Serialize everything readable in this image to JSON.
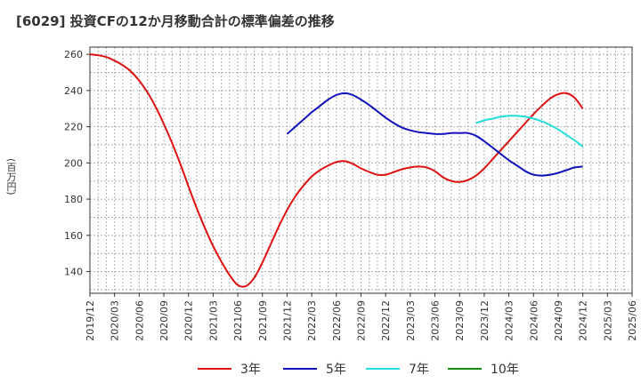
{
  "chart_data": {
    "type": "line",
    "title": "[6029]  投資CFの12か月移動合計の標準偏差の推移",
    "ylabel": "(百万円)",
    "xlabel": "",
    "ylim": [
      128,
      264
    ],
    "yticks": [
      140,
      160,
      180,
      200,
      220,
      240,
      260
    ],
    "x_tick_labels": [
      "2019/12",
      "2020/03",
      "2020/06",
      "2020/09",
      "2020/12",
      "2021/03",
      "2021/06",
      "2021/09",
      "2021/12",
      "2022/03",
      "2022/06",
      "2022/09",
      "2022/12",
      "2023/03",
      "2023/06",
      "2023/09",
      "2023/12",
      "2024/03",
      "2024/06",
      "2024/09",
      "2024/12",
      "2025/03",
      "2025/06"
    ],
    "x_start": "2019-12",
    "grid": true,
    "legend_position": "bottom",
    "series": [
      {
        "name": "3年",
        "color": "#dd1111",
        "points": [
          [
            "2019-12",
            260
          ],
          [
            "2020-01",
            259.5
          ],
          [
            "2020-02",
            258.5
          ],
          [
            "2020-03",
            256.5
          ],
          [
            "2020-04",
            254
          ],
          [
            "2020-05",
            250.5
          ],
          [
            "2020-06",
            245.5
          ],
          [
            "2020-07",
            239
          ],
          [
            "2020-08",
            231
          ],
          [
            "2020-09",
            221.5
          ],
          [
            "2020-10",
            211
          ],
          [
            "2020-11",
            199.5
          ],
          [
            "2020-12",
            187
          ],
          [
            "2021-01",
            175
          ],
          [
            "2021-02",
            164
          ],
          [
            "2021-03",
            154
          ],
          [
            "2021-04",
            145.5
          ],
          [
            "2021-05",
            138
          ],
          [
            "2021-06",
            132.5
          ],
          [
            "2021-07",
            132
          ],
          [
            "2021-08",
            136.5
          ],
          [
            "2021-09",
            145
          ],
          [
            "2021-10",
            155
          ],
          [
            "2021-11",
            165
          ],
          [
            "2021-12",
            174
          ],
          [
            "2022-01",
            181.5
          ],
          [
            "2022-02",
            187.5
          ],
          [
            "2022-03",
            192.5
          ],
          [
            "2022-04",
            196
          ],
          [
            "2022-05",
            198.5
          ],
          [
            "2022-06",
            200.5
          ],
          [
            "2022-07",
            201
          ],
          [
            "2022-08",
            199.5
          ],
          [
            "2022-09",
            197
          ],
          [
            "2022-10",
            195
          ],
          [
            "2022-11",
            193.5
          ],
          [
            "2022-12",
            193.5
          ],
          [
            "2023-01",
            195
          ],
          [
            "2023-02",
            196.5
          ],
          [
            "2023-03",
            197.5
          ],
          [
            "2023-04",
            198
          ],
          [
            "2023-05",
            197.5
          ],
          [
            "2023-06",
            195.5
          ],
          [
            "2023-07",
            192
          ],
          [
            "2023-08",
            190
          ],
          [
            "2023-09",
            189.5
          ],
          [
            "2023-10",
            190.5
          ],
          [
            "2023-11",
            193
          ],
          [
            "2023-12",
            197
          ],
          [
            "2024-01",
            202
          ],
          [
            "2024-02",
            207
          ],
          [
            "2024-03",
            212
          ],
          [
            "2024-04",
            217
          ],
          [
            "2024-05",
            222
          ],
          [
            "2024-06",
            227
          ],
          [
            "2024-07",
            231.5
          ],
          [
            "2024-08",
            235.5
          ],
          [
            "2024-09",
            238
          ],
          [
            "2024-10",
            238.5
          ],
          [
            "2024-11",
            236
          ],
          [
            "2024-12",
            230
          ]
        ]
      },
      {
        "name": "5年",
        "color": "#1111bb",
        "points": [
          [
            "2021-12",
            216
          ],
          [
            "2022-01",
            220
          ],
          [
            "2022-02",
            224
          ],
          [
            "2022-03",
            228
          ],
          [
            "2022-04",
            231.5
          ],
          [
            "2022-05",
            235
          ],
          [
            "2022-06",
            237.5
          ],
          [
            "2022-07",
            238.5
          ],
          [
            "2022-08",
            237.5
          ],
          [
            "2022-09",
            235
          ],
          [
            "2022-10",
            232
          ],
          [
            "2022-11",
            228.5
          ],
          [
            "2022-12",
            225
          ],
          [
            "2023-01",
            222
          ],
          [
            "2023-02",
            219.5
          ],
          [
            "2023-03",
            218
          ],
          [
            "2023-04",
            217
          ],
          [
            "2023-05",
            216.5
          ],
          [
            "2023-06",
            216
          ],
          [
            "2023-07",
            216
          ],
          [
            "2023-08",
            216.5
          ],
          [
            "2023-09",
            216.5
          ],
          [
            "2023-10",
            216.5
          ],
          [
            "2023-11",
            215
          ],
          [
            "2023-12",
            212
          ],
          [
            "2024-01",
            208.5
          ],
          [
            "2024-02",
            205
          ],
          [
            "2024-03",
            201.5
          ],
          [
            "2024-04",
            198.5
          ],
          [
            "2024-05",
            195.5
          ],
          [
            "2024-06",
            193.5
          ],
          [
            "2024-07",
            193
          ],
          [
            "2024-08",
            193.5
          ],
          [
            "2024-09",
            194.5
          ],
          [
            "2024-10",
            196
          ],
          [
            "2024-11",
            197.5
          ],
          [
            "2024-12",
            198
          ]
        ]
      },
      {
        "name": "7年",
        "color": "#22dddd",
        "points": [
          [
            "2023-11",
            222
          ],
          [
            "2023-12",
            223.5
          ],
          [
            "2024-01",
            224.5
          ],
          [
            "2024-02",
            225.5
          ],
          [
            "2024-03",
            226
          ],
          [
            "2024-04",
            226
          ],
          [
            "2024-05",
            225.5
          ],
          [
            "2024-06",
            224.5
          ],
          [
            "2024-07",
            223
          ],
          [
            "2024-08",
            221
          ],
          [
            "2024-09",
            218.5
          ],
          [
            "2024-10",
            215.5
          ],
          [
            "2024-11",
            212.5
          ],
          [
            "2024-12",
            209
          ]
        ]
      },
      {
        "name": "10年",
        "color": "#118811",
        "points": []
      }
    ]
  }
}
